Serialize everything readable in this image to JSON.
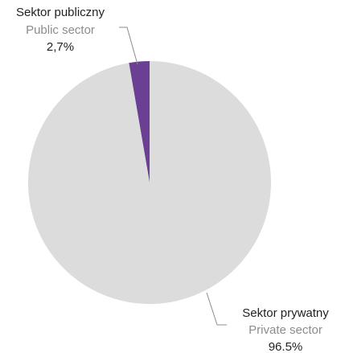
{
  "chart_data": {
    "type": "pie",
    "slices": [
      {
        "label_pl": "Sektor publiczny",
        "label_en": "Public sector",
        "value": 2.7,
        "value_label": "2,7%",
        "color": "#6b3f93"
      },
      {
        "label_pl": "Sektor prywatny",
        "label_en": "Private sector",
        "value": 96.5,
        "value_label": "96.5%",
        "color": "#dcdcdc"
      }
    ],
    "start_angle": "12 o'clock",
    "direction": "clockwise from public sector"
  }
}
